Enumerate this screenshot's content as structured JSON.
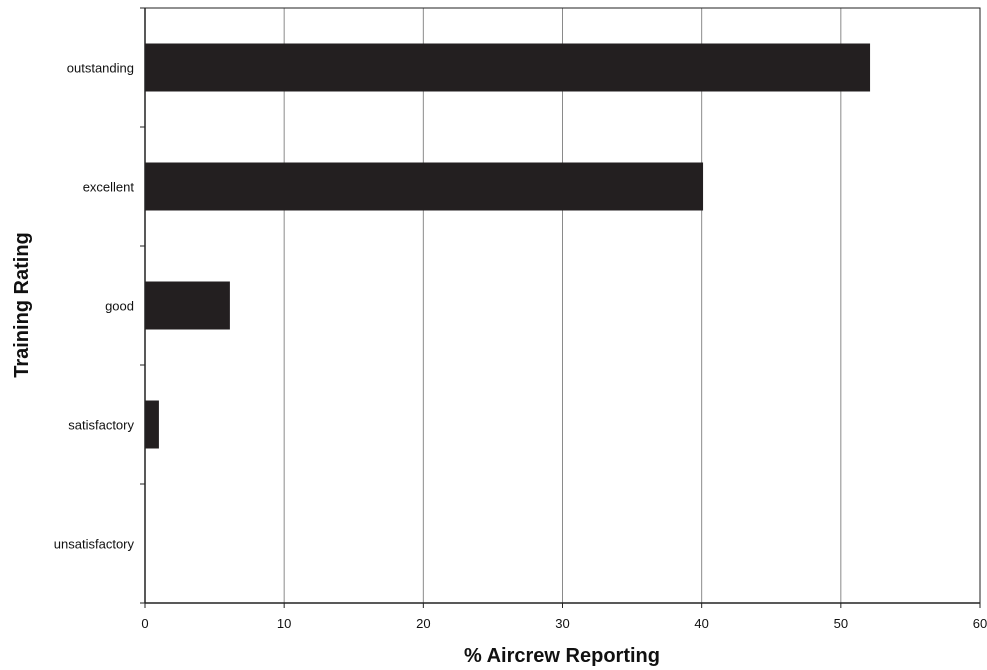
{
  "chart_data": {
    "type": "bar",
    "orientation": "horizontal",
    "title": "",
    "xlabel": "% Aircrew Reporting",
    "ylabel": "Training Rating",
    "categories": [
      "outstanding",
      "excellent",
      "good",
      "satisfactory",
      "unsatisfactory"
    ],
    "values": [
      52.1,
      40.1,
      6.1,
      1.0,
      0
    ],
    "xlim": [
      0,
      60
    ],
    "xticks": [
      "0",
      "10",
      "20",
      "30",
      "40",
      "50",
      "60"
    ],
    "grid": "vertical",
    "legend": "none",
    "colors": {
      "bar": "#231f20",
      "grid": "#8a8a8a",
      "axis": "#222222",
      "background": "#ffffff"
    }
  }
}
